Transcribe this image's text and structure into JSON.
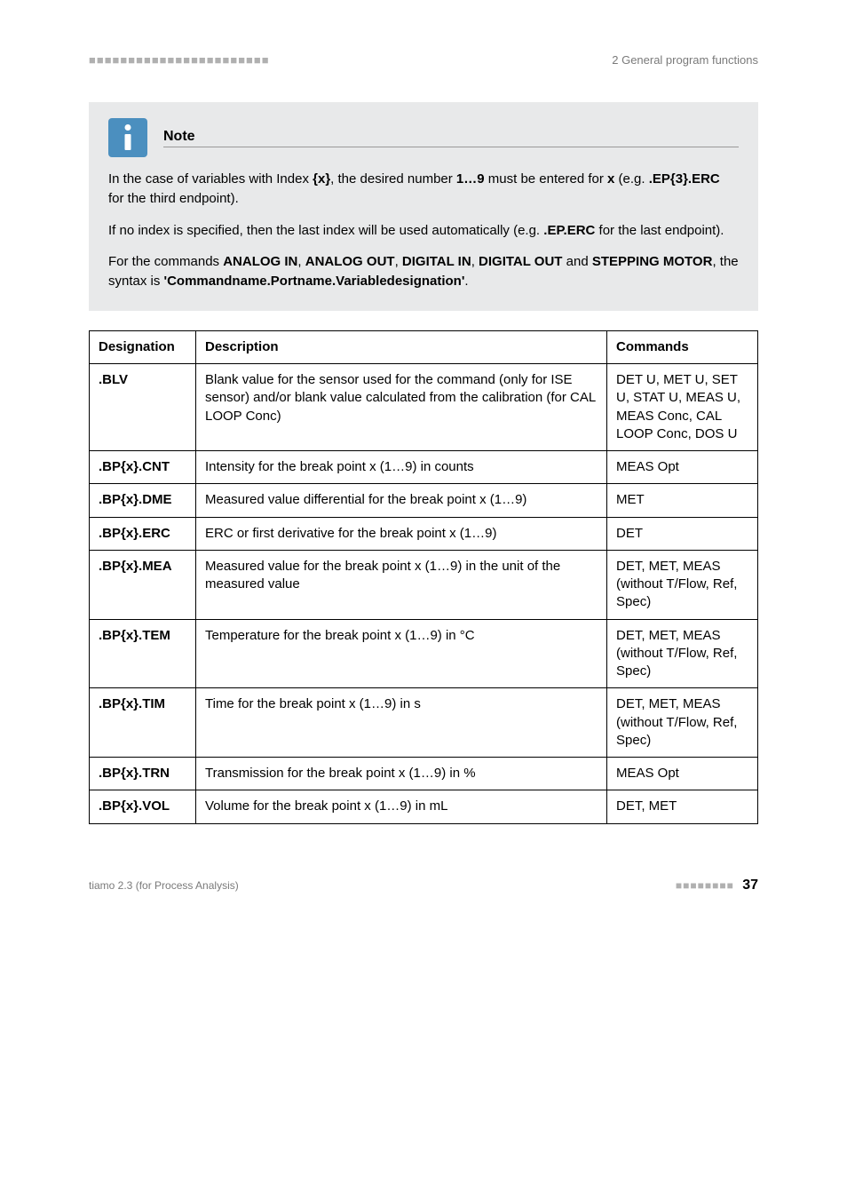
{
  "header": {
    "dashes": "■■■■■■■■■■■■■■■■■■■■■■■",
    "right": "2 General program functions"
  },
  "note": {
    "title": "Note",
    "para1_a": "In the case of variables with Index ",
    "para1_b": "{x}",
    "para1_c": ", the desired number ",
    "para1_d": "1…9",
    "para1_e": " must be entered for ",
    "para1_f": "x",
    "para1_g": " (e.g. ",
    "para1_h": ".EP{3}.ERC",
    "para1_i": " for the third endpoint).",
    "para2_a": "If no index is specified, then the last index will be used automatically (e.g. ",
    "para2_b": ".EP.ERC",
    "para2_c": " for the last endpoint).",
    "para3_a": "For the commands ",
    "para3_b": "ANALOG IN",
    "para3_c": ", ",
    "para3_d": "ANALOG OUT",
    "para3_e": ", ",
    "para3_f": "DIGITAL IN",
    "para3_g": ", ",
    "para3_h": "DIGITAL OUT",
    "para3_i": " and ",
    "para3_j": "STEPPING MOTOR",
    "para3_k": ", the syntax is ",
    "para3_l": "'Commandname.Portname.Variabledesignation'",
    "para3_m": "."
  },
  "table": {
    "head": {
      "c1": "Designation",
      "c2": "Description",
      "c3": "Commands"
    },
    "rows": [
      {
        "d": ".BLV",
        "desc": "Blank value for the sensor used for the command (only for ISE sensor) and/or blank value calculated from the calibration (for CAL LOOP Conc)",
        "cmd": "DET U, MET U, SET U, STAT U, MEAS U, MEAS Conc, CAL LOOP Conc, DOS U"
      },
      {
        "d": ".BP{x}.CNT",
        "desc": "Intensity for the break point x (1…9) in counts",
        "cmd": "MEAS Opt"
      },
      {
        "d": ".BP{x}.DME",
        "desc": "Measured value differential for the break point x (1…9)",
        "cmd": "MET"
      },
      {
        "d": ".BP{x}.ERC",
        "desc": "ERC or first derivative for the break point x (1…9)",
        "cmd": "DET"
      },
      {
        "d": ".BP{x}.MEA",
        "desc": "Measured value for the break point x (1…9) in the unit of the measured value",
        "cmd": "DET, MET, MEAS (without T/Flow, Ref, Spec)"
      },
      {
        "d": ".BP{x}.TEM",
        "desc": "Temperature for the break point x (1…9) in °C",
        "cmd": "DET, MET, MEAS (without T/Flow, Ref, Spec)"
      },
      {
        "d": ".BP{x}.TIM",
        "desc": "Time for the break point x (1…9) in s",
        "cmd": "DET, MET, MEAS (without T/Flow, Ref, Spec)"
      },
      {
        "d": ".BP{x}.TRN",
        "desc": "Transmission for the break point x (1…9) in %",
        "cmd": "MEAS Opt"
      },
      {
        "d": ".BP{x}.VOL",
        "desc": "Volume for the break point x (1…9) in mL",
        "cmd": "DET, MET"
      }
    ]
  },
  "footer": {
    "left": "tiamo 2.3 (for Process Analysis)",
    "dashes": "■■■■■■■■",
    "page": "37"
  }
}
